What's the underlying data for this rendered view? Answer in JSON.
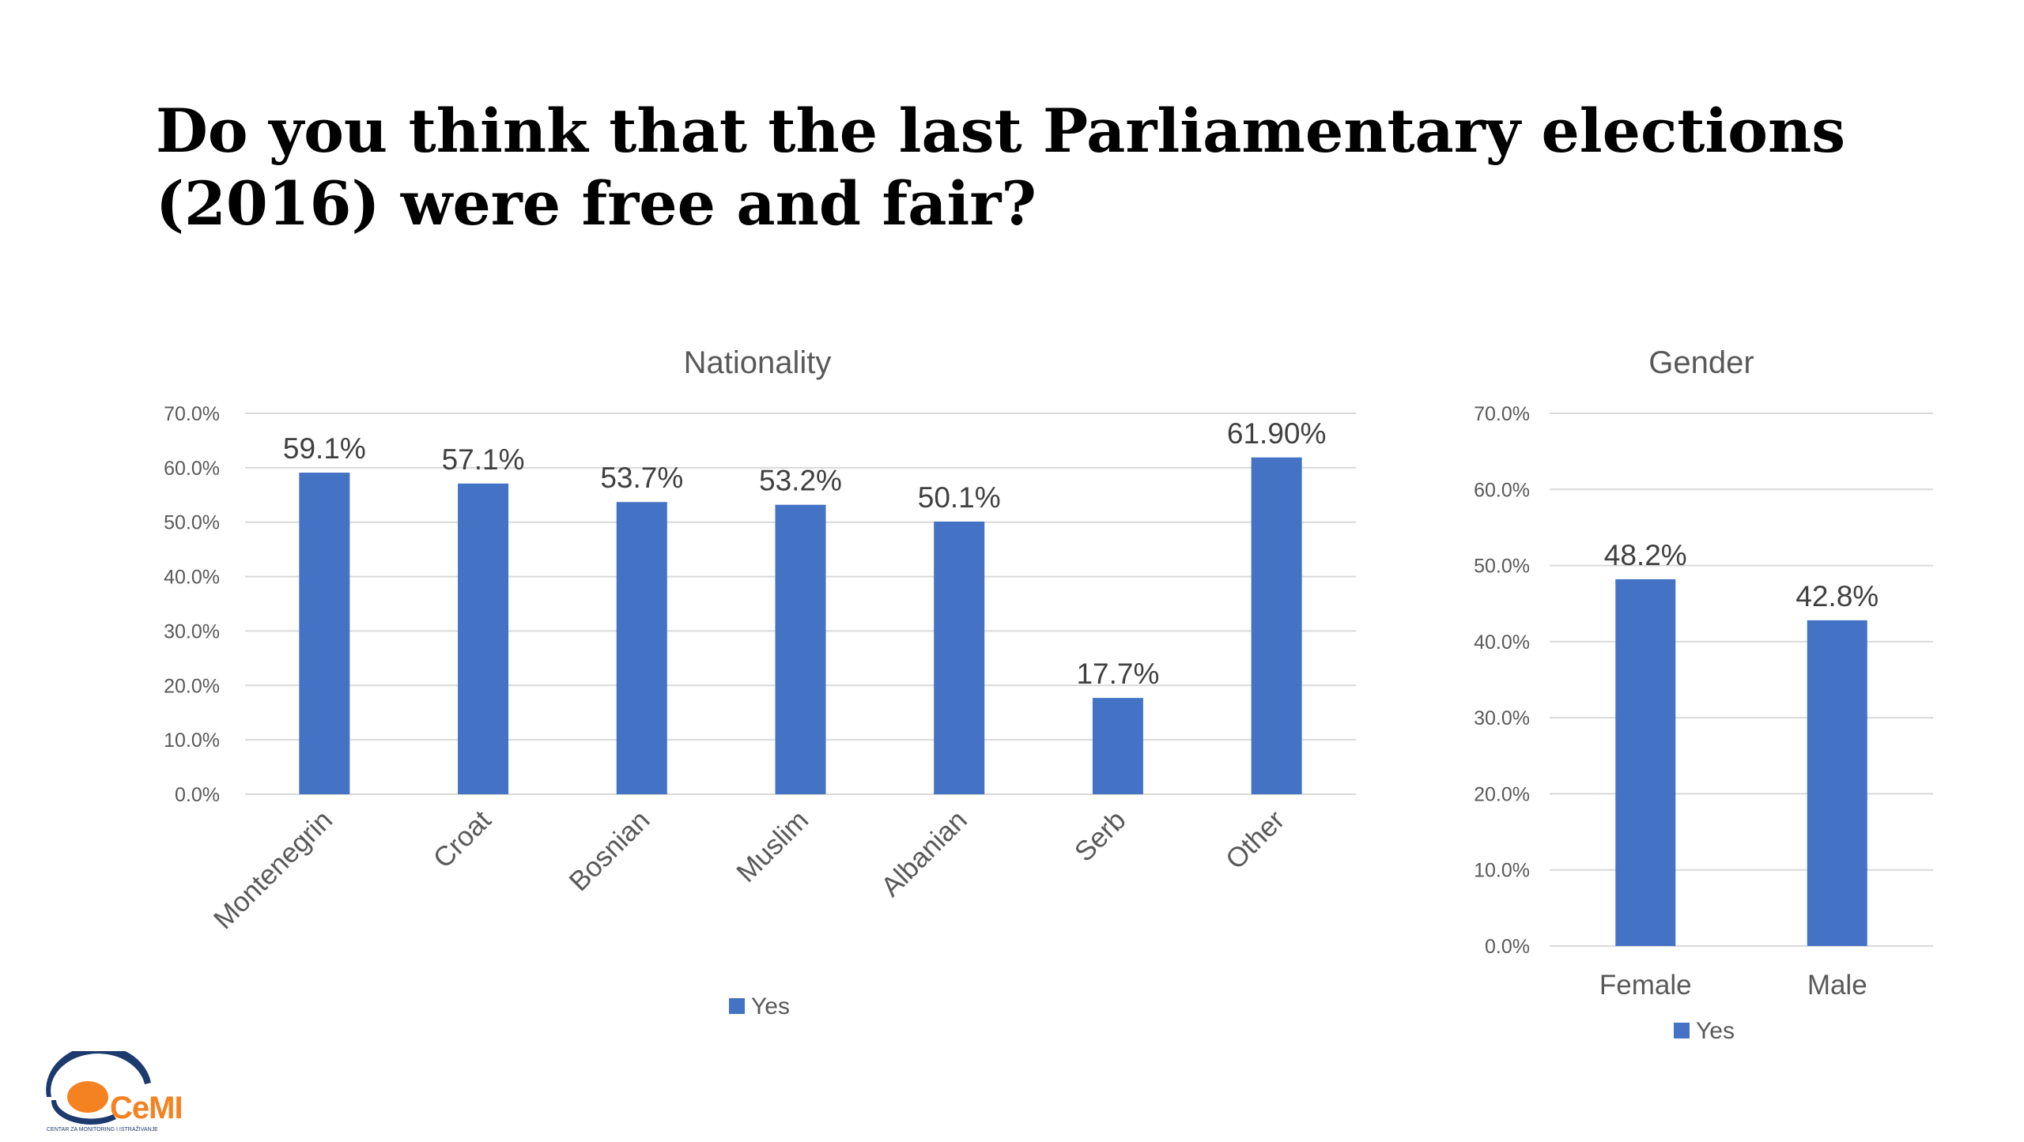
{
  "page": {
    "title": "Do you think that the last Parliamentary elections (2016) were free and fair?"
  },
  "colors": {
    "bar": "#4472c4",
    "grid": "#d9d9d9",
    "text": "#595959"
  },
  "chart_data": [
    {
      "type": "bar",
      "title": "Nationality",
      "categories": [
        "Montenegrin",
        "Croat",
        "Bosnian",
        "Muslim",
        "Albanian",
        "Serb",
        "Other"
      ],
      "series": [
        {
          "name": "Yes",
          "values": [
            59.1,
            57.1,
            53.7,
            53.2,
            50.1,
            17.7,
            61.9
          ],
          "labels": [
            "59.1%",
            "57.1%",
            "53.7%",
            "53.2%",
            "50.1%",
            "17.7%",
            "61.90%"
          ]
        }
      ],
      "yticks": [
        "0.0%",
        "10.0%",
        "20.0%",
        "30.0%",
        "40.0%",
        "50.0%",
        "60.0%",
        "70.0%"
      ],
      "ylim": [
        0,
        70
      ],
      "legend": "bottom",
      "grid": true
    },
    {
      "type": "bar",
      "title": "Gender",
      "categories": [
        "Female",
        "Male"
      ],
      "series": [
        {
          "name": "Yes",
          "values": [
            48.2,
            42.8
          ],
          "labels": [
            "48.2%",
            "42.8%"
          ]
        }
      ],
      "yticks": [
        "0.0%",
        "10.0%",
        "20.0%",
        "30.0%",
        "40.0%",
        "50.0%",
        "60.0%",
        "70.0%"
      ],
      "ylim": [
        0,
        70
      ],
      "legend": "bottom",
      "grid": true
    }
  ],
  "logo": {
    "name": "CeMI",
    "subtitle": "CENTAR ZA MONITORING I ISTRAŽIVANJE"
  }
}
